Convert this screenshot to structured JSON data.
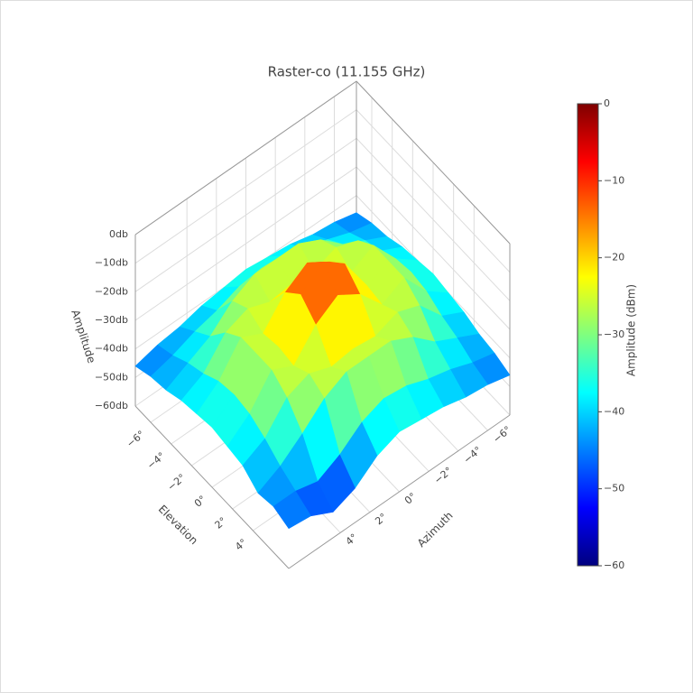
{
  "chart_data": {
    "type": "surface",
    "title": "Raster-co (11.155 GHz)",
    "x_title": "Azimuth",
    "y_title": "Elevation",
    "z_title": "Amplitude",
    "x": [
      -7.5,
      -6,
      -4.5,
      -3,
      -1.5,
      0,
      1.5,
      3,
      4.5,
      6,
      7.5
    ],
    "y": [
      -7.5,
      -6,
      -4.5,
      -3,
      -1.5,
      0,
      1.5,
      3,
      4.5,
      6,
      7.5
    ],
    "z": [
      [
        -46,
        -44,
        -43,
        -41,
        -40,
        -39,
        -40,
        -41,
        -43,
        -44,
        -46
      ],
      [
        -44,
        -42,
        -39,
        -37,
        -34,
        -33,
        -34,
        -37,
        -39,
        -42,
        -44
      ],
      [
        -43,
        -39,
        -35,
        -28,
        -24,
        -24,
        -24,
        -28,
        -35,
        -39,
        -43
      ],
      [
        -41,
        -37,
        -28,
        -25,
        -28,
        -27,
        -28,
        -25,
        -28,
        -37,
        -41
      ],
      [
        -40,
        -34,
        -24,
        -28,
        -19,
        -14,
        -19,
        -28,
        -24,
        -34,
        -40
      ],
      [
        -39,
        -33,
        -24,
        -27,
        -14,
        -8,
        -14,
        -27,
        -24,
        -33,
        -39
      ],
      [
        -40,
        -34,
        -24,
        -28,
        -19,
        -14,
        -19,
        -28,
        -24,
        -34,
        -40
      ],
      [
        -41,
        -37,
        -28,
        -25,
        -28,
        -27,
        -28,
        -25,
        -28,
        -37,
        -41
      ],
      [
        -43,
        -39,
        -35,
        -28,
        -24,
        -24,
        -24,
        -28,
        -35,
        -41,
        -45
      ],
      [
        -44,
        -42,
        -39,
        -37,
        -34,
        -33,
        -36,
        -42,
        -46,
        -44,
        -44
      ],
      [
        -46,
        -44,
        -43,
        -41,
        -40,
        -39,
        -42,
        -48,
        -51,
        -47,
        -46
      ]
    ],
    "xlim": [
      -7.5,
      7.5
    ],
    "ylim": [
      -7.5,
      7.5
    ],
    "zlim": [
      -60,
      0
    ],
    "xticks": [
      {
        "value": -6,
        "label": "−6°"
      },
      {
        "value": -4,
        "label": "−4°"
      },
      {
        "value": -2,
        "label": "−2°"
      },
      {
        "value": 0,
        "label": "0°"
      },
      {
        "value": 2,
        "label": "2°"
      },
      {
        "value": 4,
        "label": "4°"
      }
    ],
    "yticks": [
      {
        "value": -6,
        "label": "−6°"
      },
      {
        "value": -4,
        "label": "−4°"
      },
      {
        "value": -2,
        "label": "−2°"
      },
      {
        "value": 0,
        "label": "0°"
      },
      {
        "value": 2,
        "label": "2°"
      },
      {
        "value": 4,
        "label": "4°"
      }
    ],
    "zticks": [
      {
        "value": 0,
        "label": "0db"
      },
      {
        "value": -10,
        "label": "−10db"
      },
      {
        "value": -20,
        "label": "−20db"
      },
      {
        "value": -30,
        "label": "−30db"
      },
      {
        "value": -40,
        "label": "−40db"
      },
      {
        "value": -50,
        "label": "−50db"
      },
      {
        "value": -60,
        "label": "−60db"
      }
    ],
    "colorscale": [
      "#00007f",
      "#0000ff",
      "#007fff",
      "#00ffff",
      "#7fff7f",
      "#ffff00",
      "#ff7f00",
      "#ff0000",
      "#7f0000"
    ],
    "colorbar": {
      "title": "Amplitude (dBm)",
      "range": [
        -60,
        0
      ],
      "ticks": [
        {
          "value": 0,
          "label": "0"
        },
        {
          "value": -10,
          "label": "−10"
        },
        {
          "value": -20,
          "label": "−20"
        },
        {
          "value": -30,
          "label": "−30"
        },
        {
          "value": -40,
          "label": "−40"
        },
        {
          "value": -50,
          "label": "−50"
        },
        {
          "value": -60,
          "label": "−60"
        }
      ]
    }
  }
}
